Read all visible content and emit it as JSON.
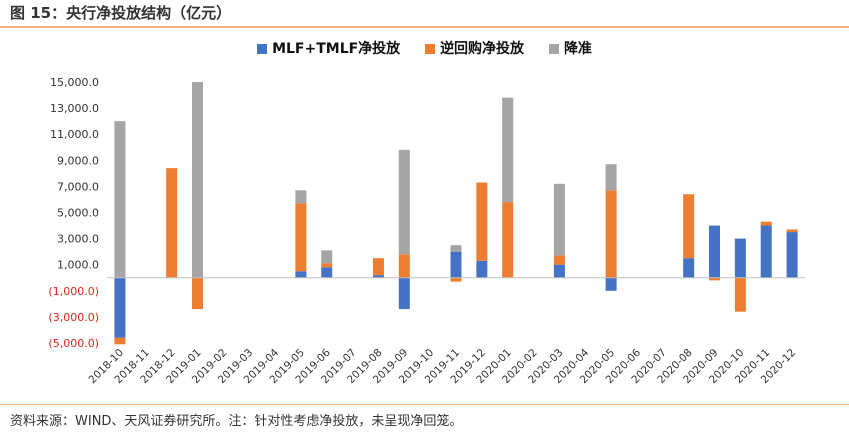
{
  "header": {
    "title": "图 15：央行净投放结构（亿元）"
  },
  "footer": {
    "source": "资料来源：WIND、天风证券研究所。注：针对性考虑净投放，未呈现净回笼。"
  },
  "colors": {
    "mlf": "#4472c4",
    "reverse_repo": "#ed7d31",
    "rrr_cut": "#a5a5a5",
    "accent_line": "#f0b27a",
    "negative_tick": "#e0241b"
  },
  "chart_data": {
    "type": "bar",
    "stacked": true,
    "categories": [
      "2018-10",
      "2018-11",
      "2018-12",
      "2019-01",
      "2019-02",
      "2019-03",
      "2019-04",
      "2019-05",
      "2019-06",
      "2019-07",
      "2019-08",
      "2019-09",
      "2019-10",
      "2019-11",
      "2019-12",
      "2020-01",
      "2020-02",
      "2020-03",
      "2020-04",
      "2020-05",
      "2020-06",
      "2020-07",
      "2020-08",
      "2020-09",
      "2020-10",
      "2020-11",
      "2020-12"
    ],
    "series": [
      {
        "name": "MLF+TMLF净投放",
        "color": "#4472c4",
        "values": [
          -4600,
          0,
          0,
          0,
          0,
          0,
          0,
          500,
          800,
          0,
          200,
          -2400,
          0,
          2000,
          1300,
          0,
          0,
          1000,
          0,
          -1000,
          0,
          0,
          1500,
          4000,
          3000,
          4000,
          3500
        ]
      },
      {
        "name": "逆回购净投放",
        "color": "#ed7d31",
        "values": [
          -500,
          0,
          8400,
          -2400,
          0,
          0,
          0,
          5200,
          300,
          0,
          1300,
          1800,
          0,
          -300,
          6000,
          5800,
          0,
          700,
          0,
          6700,
          0,
          0,
          4900,
          -200,
          -2600,
          300,
          200
        ]
      },
      {
        "name": "降准",
        "color": "#a5a5a5",
        "values": [
          12000,
          0,
          0,
          15000,
          0,
          0,
          0,
          1000,
          1000,
          0,
          0,
          8000,
          0,
          500,
          0,
          8000,
          0,
          5500,
          0,
          2000,
          0,
          0,
          0,
          0,
          0,
          0,
          0
        ]
      }
    ],
    "ylim": [
      -5000,
      15000
    ],
    "y_ticks": [
      15000,
      13000,
      11000,
      9000,
      7000,
      5000,
      3000,
      1000,
      -1000,
      -3000,
      -5000
    ],
    "y_tick_labels": [
      "15,000.0",
      "13,000.0",
      "11,000.0",
      "9,000.0",
      "7,000.0",
      "5,000.0",
      "3,000.0",
      "1,000.0",
      "(1,000.0)",
      "(3,000.0)",
      "(5,000.0)"
    ],
    "grid": false,
    "legend_position": "top-center",
    "xlabel": "",
    "ylabel": ""
  }
}
